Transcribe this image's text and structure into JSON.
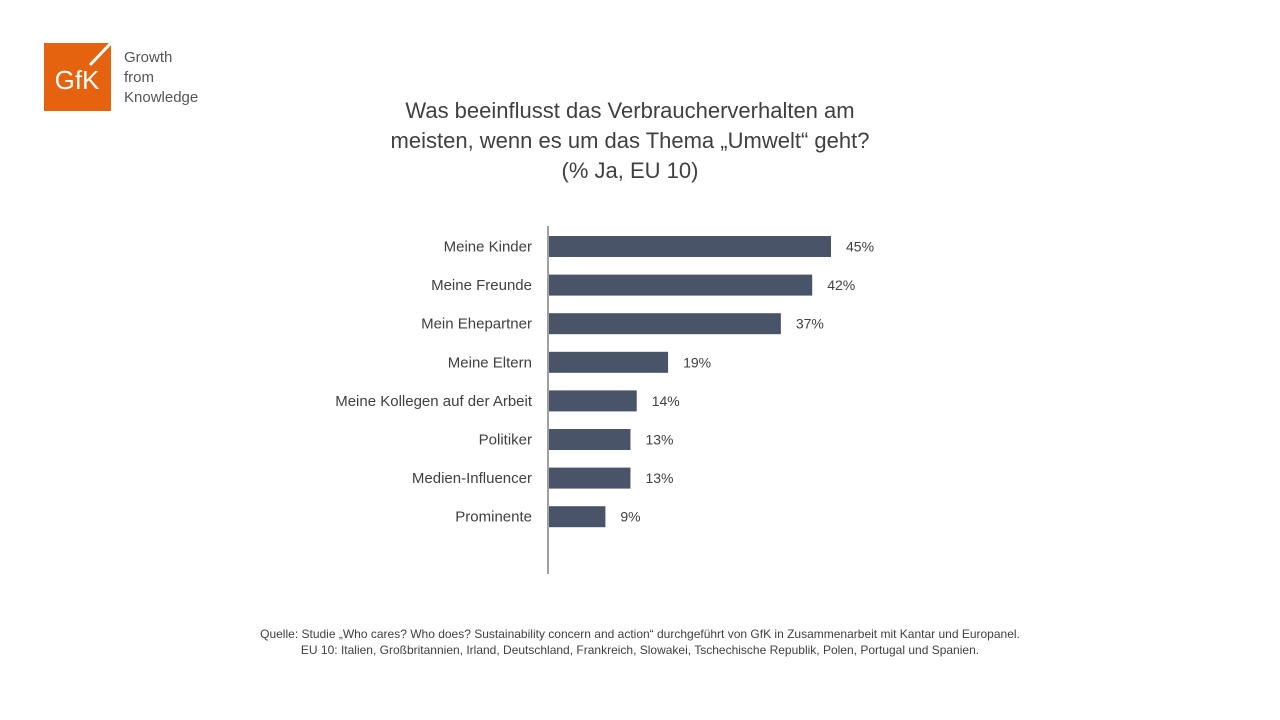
{
  "brand": {
    "logo_text": "GfK",
    "tagline": [
      "Growth",
      "from",
      "Knowledge"
    ],
    "logo_color": "#E5620F"
  },
  "chart_data": {
    "type": "bar",
    "orientation": "horizontal",
    "title": [
      "Was beeinflusst das Verbraucherverhalten am",
      "meisten, wenn es um das Thema „Umwelt“ geht?",
      "(% Ja, EU 10)"
    ],
    "categories": [
      "Meine Kinder",
      "Meine Freunde",
      "Mein Ehepartner",
      "Meine Eltern",
      "Meine Kollegen auf der Arbeit",
      "Politiker",
      "Medien-Influencer",
      "Prominente"
    ],
    "values": [
      45,
      42,
      37,
      19,
      14,
      13,
      13,
      9
    ],
    "value_labels": [
      "45%",
      "42%",
      "37%",
      "19%",
      "14%",
      "13%",
      "13%",
      "9%"
    ],
    "xlim": [
      0,
      45
    ],
    "grid": false,
    "bar_color": "#4A5468"
  },
  "footnote": [
    "Quelle: Studie „Who cares? Who does? Sustainability concern and action“ durchgeführt von GfK in Zusammenarbeit mit Kantar und Europanel.",
    "EU 10: Italien, Großbritannien, Irland, Deutschland, Frankreich, Slowakei, Tschechische Republik, Polen, Portugal und Spanien."
  ]
}
